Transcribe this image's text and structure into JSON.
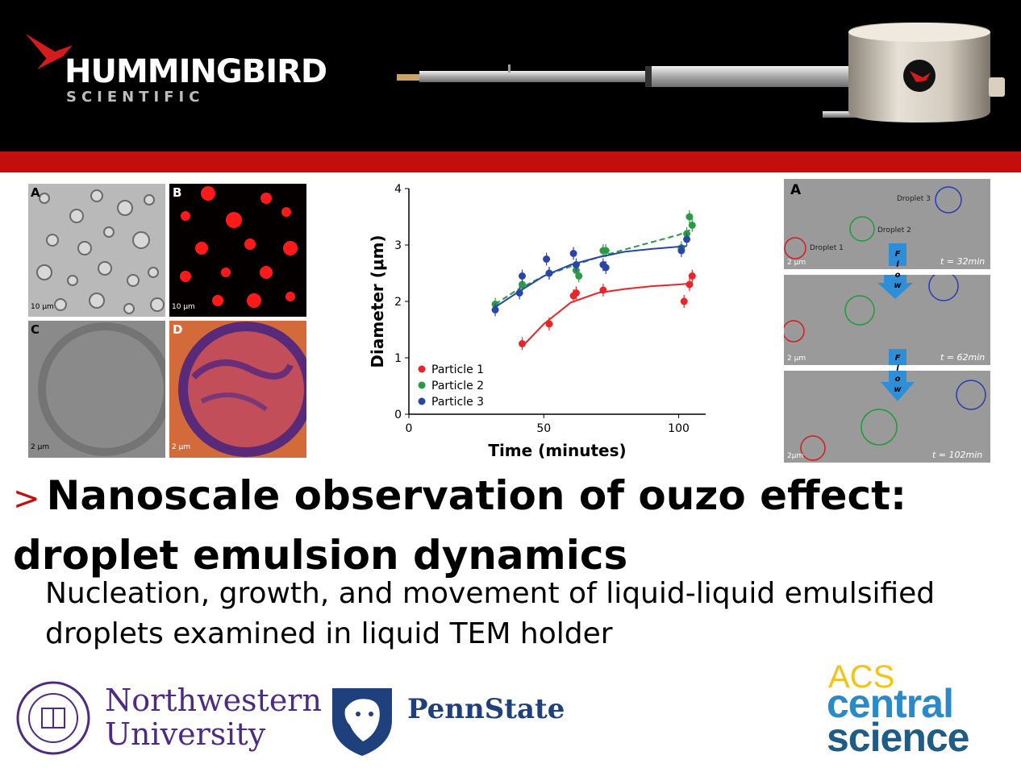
{
  "header": {
    "brand_name": "HUMMINGBIRD",
    "brand_sub": "SCIENTIFIC",
    "colors": {
      "header_bg": "#000000",
      "accent_red": "#c40e0e"
    }
  },
  "left_figure": {
    "panels": [
      {
        "label": "A",
        "scale": "10 μm"
      },
      {
        "label": "B",
        "scale": "10 μm"
      },
      {
        "label": "C",
        "scale": "2 μm"
      },
      {
        "label": "D",
        "scale": "2 μm"
      }
    ]
  },
  "right_figure": {
    "label": "A",
    "droplets": [
      "Droplet 1",
      "Droplet 2",
      "Droplet 3"
    ],
    "flow_letters": [
      "F",
      "l",
      "o",
      "w"
    ],
    "frames": [
      {
        "time": "t = 32min",
        "scale": "2 μm"
      },
      {
        "time": "t = 62min",
        "scale": "2 μm"
      },
      {
        "time": "t = 102min",
        "scale": "2μm"
      }
    ]
  },
  "chart_data": {
    "type": "scatter",
    "xlabel": "Time (minutes)",
    "ylabel": "Diameter (μm)",
    "xlim": [
      0,
      110
    ],
    "ylim": [
      0,
      4
    ],
    "xticks": [
      0,
      50,
      100
    ],
    "yticks": [
      0,
      1,
      2,
      3,
      4
    ],
    "legend_position": "bottom-left",
    "series": [
      {
        "name": "Particle 1",
        "color": "#e8262a",
        "x": [
          42,
          52,
          61,
          62,
          72,
          102,
          104,
          105
        ],
        "y": [
          1.25,
          1.6,
          2.1,
          2.15,
          2.2,
          2.0,
          2.3,
          2.45
        ],
        "fit": [
          [
            42,
            1.2
          ],
          [
            50,
            1.6
          ],
          [
            60,
            1.98
          ],
          [
            70,
            2.15
          ],
          [
            80,
            2.22
          ],
          [
            90,
            2.27
          ],
          [
            100,
            2.3
          ],
          [
            105,
            2.32
          ]
        ]
      },
      {
        "name": "Particle 2",
        "color": "#2a9a46",
        "x": [
          32,
          42,
          52,
          62,
          63,
          72,
          73,
          101,
          103,
          104,
          105
        ],
        "y": [
          1.95,
          2.3,
          2.5,
          2.55,
          2.45,
          2.9,
          2.9,
          2.95,
          3.2,
          3.5,
          3.35
        ],
        "fit": [
          [
            32,
            1.95
          ],
          [
            40,
            2.2
          ],
          [
            50,
            2.45
          ],
          [
            60,
            2.62
          ],
          [
            70,
            2.78
          ],
          [
            80,
            2.92
          ],
          [
            90,
            3.05
          ],
          [
            100,
            3.18
          ],
          [
            105,
            3.28
          ]
        ]
      },
      {
        "name": "Particle 3",
        "color": "#2a45a8",
        "x": [
          32,
          41,
          42,
          51,
          52,
          61,
          62,
          72,
          73,
          101,
          103
        ],
        "y": [
          1.85,
          2.15,
          2.45,
          2.75,
          2.5,
          2.85,
          2.65,
          2.65,
          2.6,
          2.9,
          3.1
        ],
        "fit": [
          [
            32,
            1.9
          ],
          [
            40,
            2.15
          ],
          [
            50,
            2.45
          ],
          [
            60,
            2.65
          ],
          [
            70,
            2.78
          ],
          [
            80,
            2.88
          ],
          [
            90,
            2.93
          ],
          [
            100,
            2.97
          ],
          [
            103,
            2.98
          ]
        ]
      }
    ]
  },
  "title": {
    "line1": "Nanoscale observation of ouzo effect:",
    "line2": "droplet emulsion dynamics"
  },
  "subtitle": {
    "line1": "Nucleation, growth, and movement of liquid-liquid emulsified",
    "line2": "droplets examined in liquid TEM holder"
  },
  "footer": {
    "nu_line1": "Northwestern",
    "nu_line2": "University",
    "psu": "PennState",
    "acs_line1": "ACS",
    "acs_line2": "central",
    "acs_line3": "science"
  }
}
